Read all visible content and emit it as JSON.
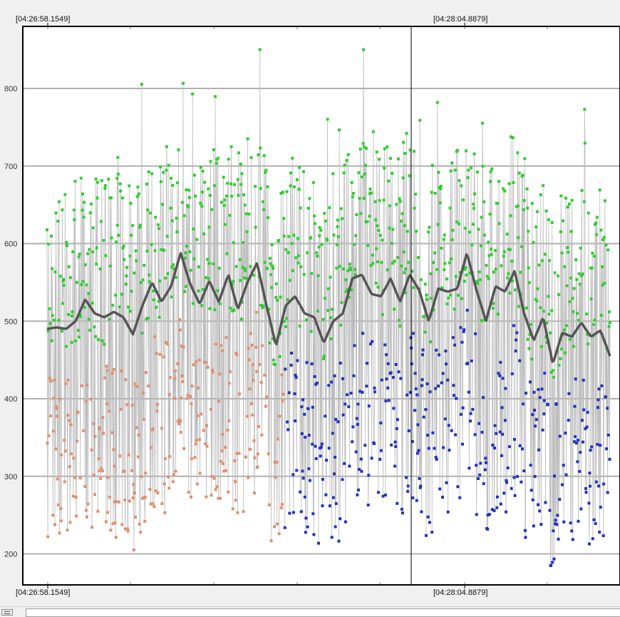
{
  "chart_data": {
    "type": "scatter",
    "title": "",
    "xlabel": "",
    "ylabel": "",
    "ylim": [
      160,
      880
    ],
    "y_ticks": [
      200,
      300,
      400,
      500,
      600,
      700,
      800
    ],
    "grid": true,
    "legend": "none",
    "x_start_label": "[04:26:58.1549]",
    "x_cursor_label": "[04:28:04.8879]",
    "x_start_label_bottom": "[04:26:58.1549]",
    "x_cursor_label_bottom": "[04:28:04.8879]",
    "num_samples": 1440,
    "trend_line": {
      "color": "#555555",
      "values": [
        490,
        492,
        490,
        500,
        528,
        510,
        505,
        512,
        505,
        483,
        520,
        550,
        525,
        545,
        588,
        548,
        522,
        552,
        525,
        560,
        515,
        550,
        575,
        520,
        468,
        520,
        532,
        510,
        505,
        472,
        500,
        510,
        555,
        560,
        535,
        532,
        555,
        525,
        560,
        540,
        500,
        542,
        538,
        542,
        588,
        540,
        500,
        545,
        538,
        565,
        510,
        475,
        505,
        445,
        485,
        480,
        498,
        480,
        488,
        455
      ]
    },
    "series": [
      {
        "color": "#33cc33",
        "y_range": [
          300,
          850
        ],
        "mean": 530
      },
      {
        "color": "#e09070",
        "y_range": [
          200,
          600
        ],
        "mean": 380
      },
      {
        "color": "#2233bb",
        "y_range": [
          185,
          680
        ],
        "mean": 390
      }
    ],
    "colors": {
      "connector": "#bcbcbc",
      "grid": "#b0b0b0",
      "background": "#ffffff",
      "frame": "#000000",
      "cursor": "#000000"
    }
  }
}
